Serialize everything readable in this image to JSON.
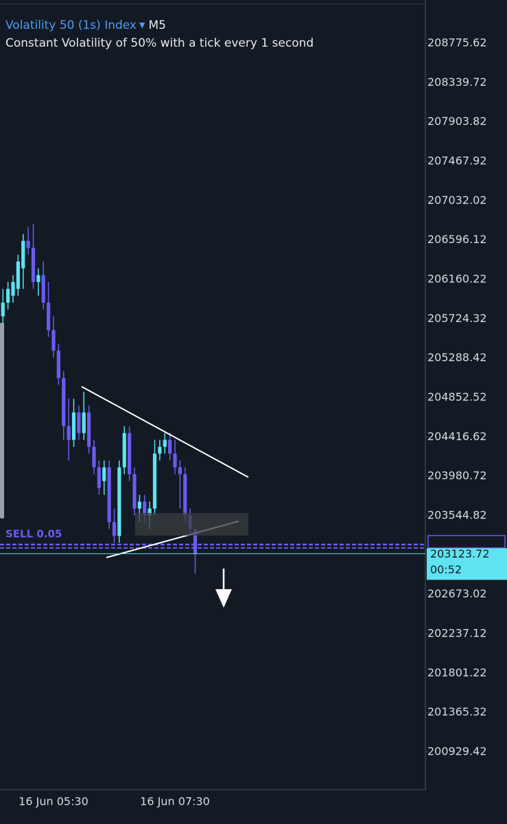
{
  "chart_data": {
    "type": "candlestick",
    "title": "Volatility 50 (1s) Index",
    "timeframe": "M5",
    "subtitle": "Constant Volatility of 50% with a tick every 1 second",
    "order_label": "SELL 0.05",
    "countdown": "00:52",
    "categories": [
      null,
      null,
      null,
      null,
      null,
      null,
      null,
      null,
      null,
      null,
      "16 Jun 05:30",
      null,
      null,
      null,
      null,
      null,
      null,
      null,
      null,
      null,
      null,
      null,
      null,
      null,
      null,
      null,
      null,
      null,
      null,
      null,
      null,
      null,
      null,
      null,
      "16 Jun 07:30",
      null,
      null,
      null,
      null
    ],
    "up_color": "#5fe3f2",
    "down_color": "#6a5cf0",
    "series": [
      {
        "open": [
          205752,
          205904,
          205980,
          206056,
          206284,
          206587,
          206511,
          206132,
          206208,
          205904,
          205600,
          205372,
          205068,
          204536,
          204384,
          204688,
          204460,
          204688,
          204308,
          204080,
          203928,
          204080,
          203473,
          203321,
          204080,
          204460,
          204004,
          203624,
          203700,
          203548,
          203624,
          204232,
          204308,
          204384,
          204232,
          204080,
          204004,
          203548,
          203397
        ],
        "high": [
          206056,
          206132,
          206208,
          206435,
          206663,
          206739,
          206777,
          206284,
          206359,
          206132,
          205752,
          205448,
          205144,
          204840,
          204840,
          204764,
          204916,
          204764,
          204384,
          204156,
          204156,
          204156,
          203624,
          204156,
          204536,
          204536,
          204080,
          203776,
          203776,
          203700,
          204384,
          204384,
          204460,
          204460,
          204384,
          204156,
          204080,
          203624,
          203397
        ],
        "low": [
          205676,
          205828,
          205904,
          205980,
          206056,
          206435,
          206056,
          205980,
          205828,
          205524,
          205296,
          204992,
          204384,
          204156,
          204308,
          204384,
          204384,
          204232,
          204004,
          203776,
          203776,
          203397,
          203245,
          203245,
          204004,
          203928,
          203548,
          203473,
          203473,
          203397,
          203548,
          204156,
          204232,
          204156,
          204004,
          203624,
          203473,
          203321,
          202903
        ],
        "close": [
          205904,
          206056,
          206132,
          206359,
          206587,
          206511,
          206132,
          206208,
          205904,
          205600,
          205372,
          205068,
          204536,
          204384,
          204688,
          204460,
          204688,
          204308,
          204080,
          203852,
          204080,
          203473,
          203321,
          204080,
          204460,
          204004,
          203624,
          203700,
          203548,
          203624,
          204232,
          204308,
          204384,
          204232,
          204080,
          204004,
          203548,
          203397,
          203123.72
        ]
      }
    ],
    "ylim": [
      200511.7,
      209208.5
    ],
    "yticks": [
      208775.62,
      208339.72,
      207903.82,
      207467.92,
      207032.02,
      206596.12,
      206160.22,
      205724.32,
      205288.42,
      204852.52,
      204416.62,
      203980.72,
      203544.82,
      202673.02,
      202237.12,
      201801.22,
      201365.32,
      200929.42
    ]
  }
}
